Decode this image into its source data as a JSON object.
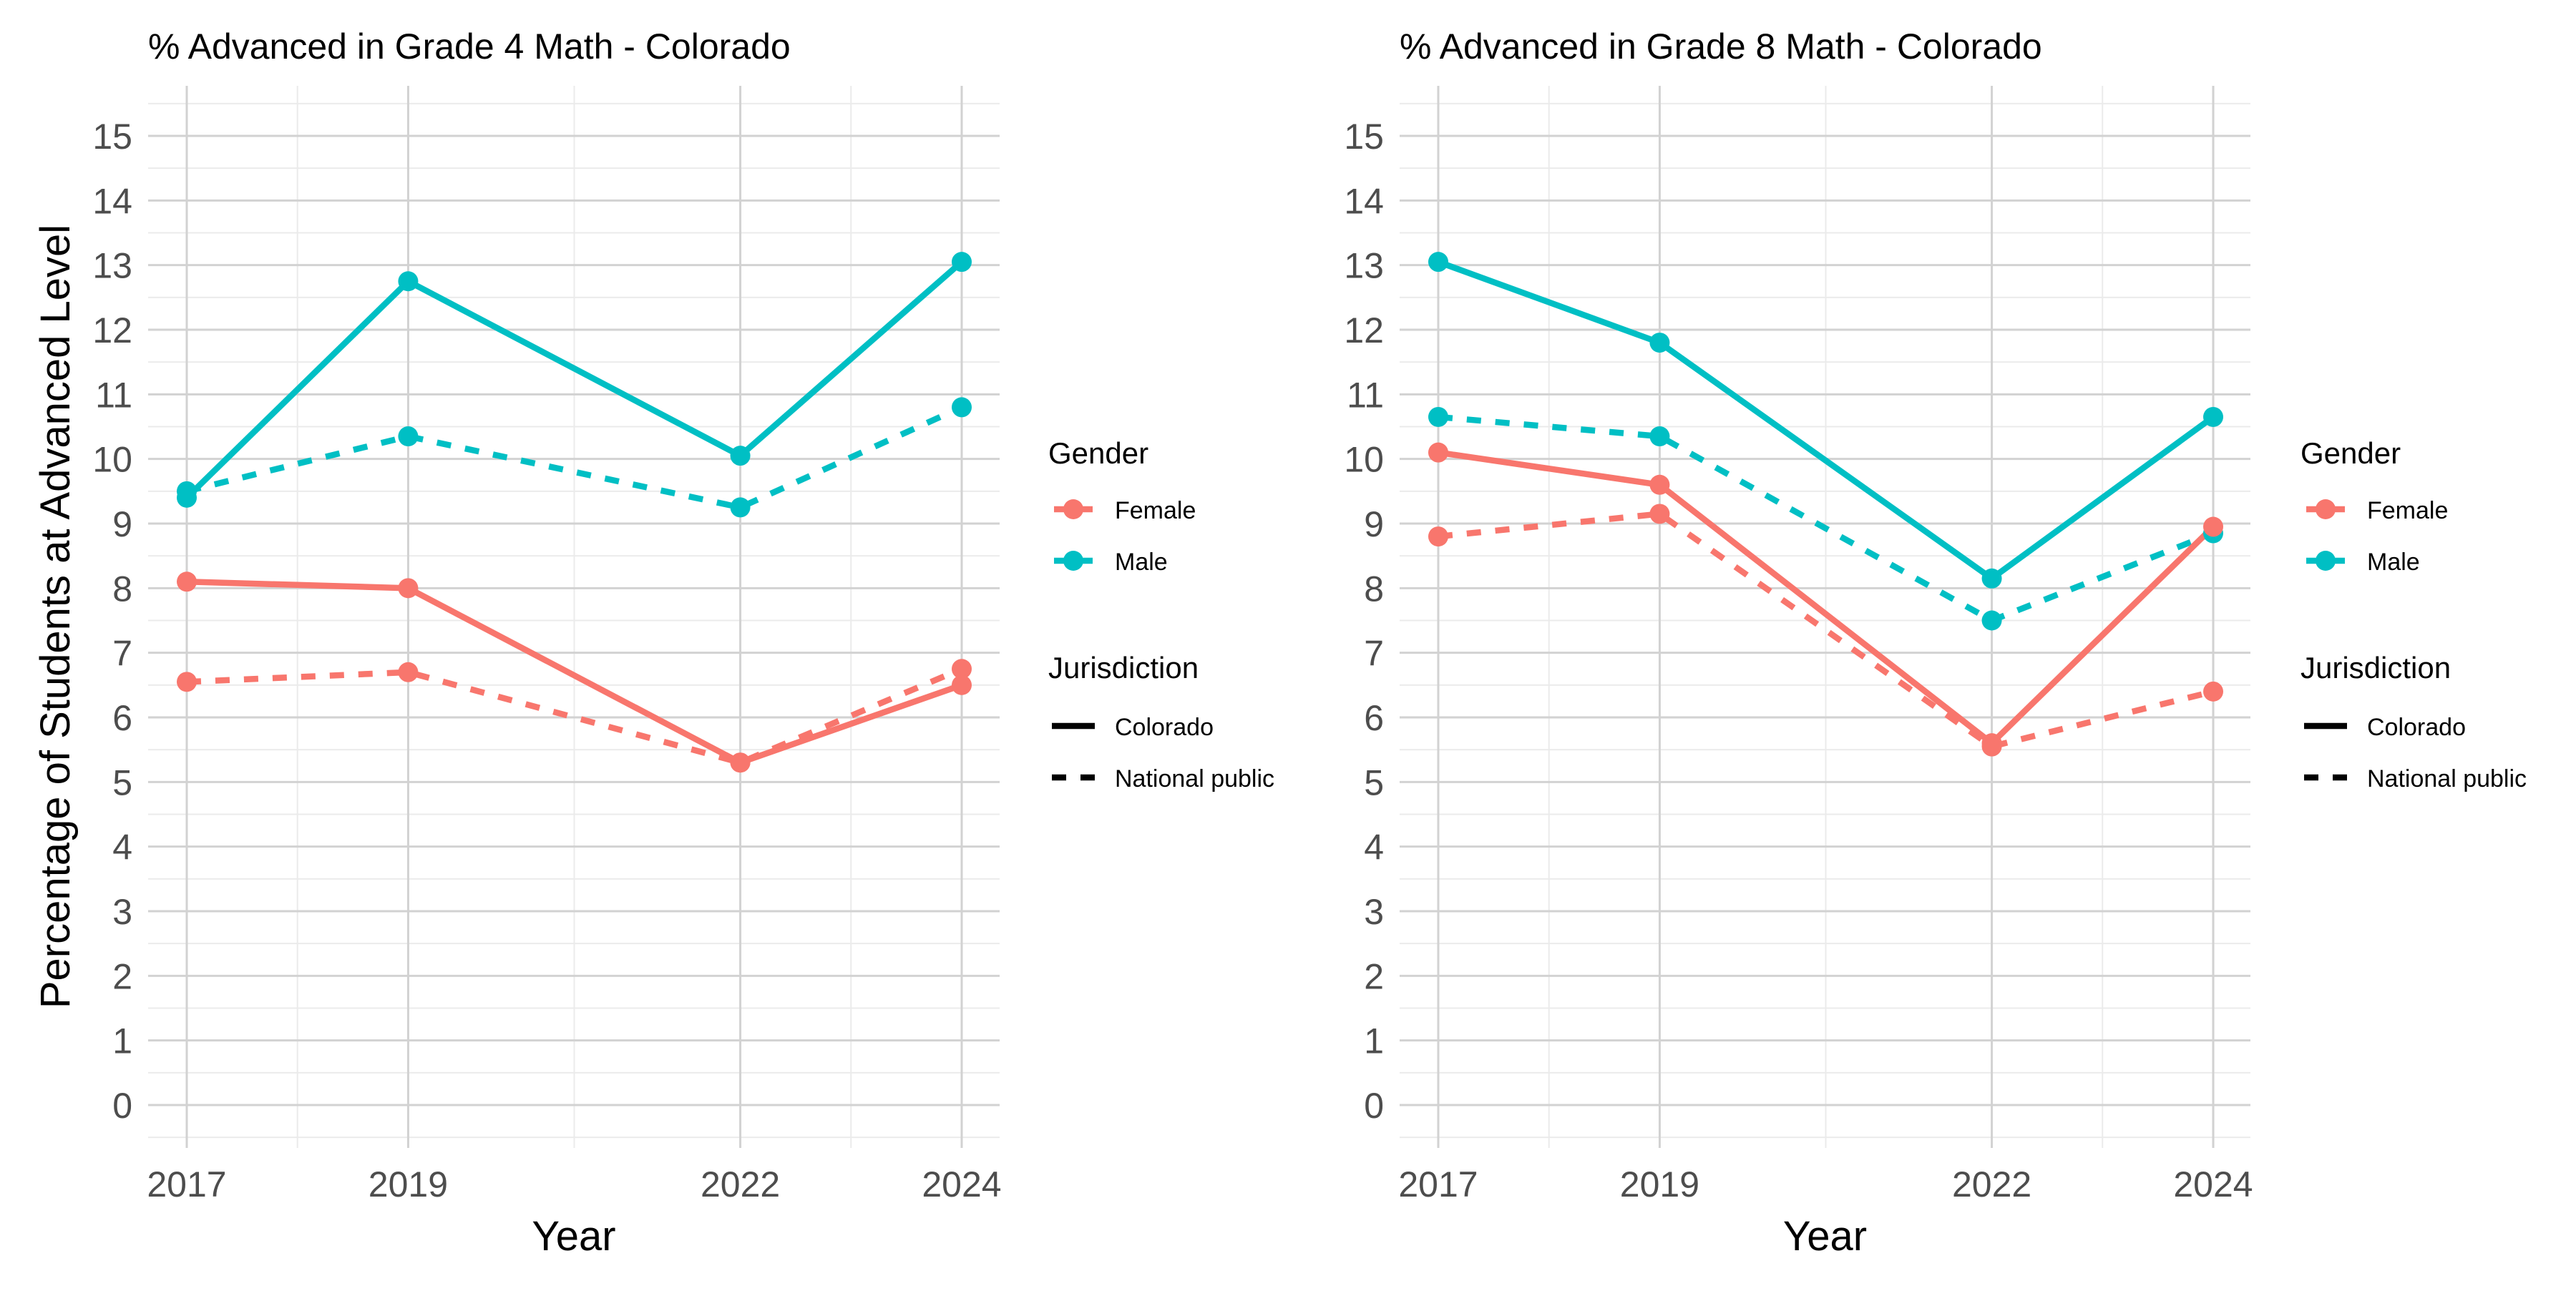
{
  "shared": {
    "ylabel": "Percentage of Students at Advanced Level",
    "xlabel": "Year",
    "colors": {
      "Female": "#F8766D",
      "Male": "#00BFC4"
    },
    "legend": {
      "gender_title": "Gender",
      "gender_items": [
        "Female",
        "Male"
      ],
      "jurisdiction_title": "Jurisdiction",
      "jurisdiction_items": [
        "Colorado",
        "National public"
      ]
    }
  },
  "chart_data": [
    {
      "type": "line",
      "title": "% Advanced in Grade 4 Math - Colorado",
      "xlabel": "Year",
      "ylabel": "Percentage of Students at Advanced Level",
      "x": [
        2017,
        2019,
        2022,
        2024
      ],
      "xlim": [
        2017,
        2024
      ],
      "ylim": [
        0,
        15
      ],
      "yticks": [
        "0",
        "1",
        "2",
        "3",
        "4",
        "5",
        "6",
        "7",
        "8",
        "9",
        "10",
        "11",
        "12",
        "13",
        "14",
        "15"
      ],
      "xticks": [
        "2017",
        "2019",
        "2022",
        "2024"
      ],
      "grid": true,
      "legend_position": "right",
      "series": [
        {
          "name": "Female",
          "gender": "Female",
          "jurisdiction": "Colorado",
          "values": [
            8.1,
            8.0,
            5.3,
            6.5
          ]
        },
        {
          "name": "Female",
          "gender": "Female",
          "jurisdiction": "National public",
          "values": [
            6.55,
            6.7,
            5.3,
            6.75
          ]
        },
        {
          "name": "Male",
          "gender": "Male",
          "jurisdiction": "Colorado",
          "values": [
            9.4,
            12.75,
            10.05,
            13.05
          ]
        },
        {
          "name": "Male",
          "gender": "Male",
          "jurisdiction": "National public",
          "values": [
            9.5,
            10.35,
            9.25,
            10.8
          ]
        }
      ]
    },
    {
      "type": "line",
      "title": "% Advanced in Grade 8 Math - Colorado",
      "xlabel": "Year",
      "ylabel": "",
      "x": [
        2017,
        2019,
        2022,
        2024
      ],
      "xlim": [
        2017,
        2024
      ],
      "ylim": [
        0,
        15
      ],
      "yticks": [
        "0",
        "1",
        "2",
        "3",
        "4",
        "5",
        "6",
        "7",
        "8",
        "9",
        "10",
        "11",
        "12",
        "13",
        "14",
        "15"
      ],
      "xticks": [
        "2017",
        "2019",
        "2022",
        "2024"
      ],
      "grid": true,
      "legend_position": "right",
      "series": [
        {
          "name": "Female",
          "gender": "Female",
          "jurisdiction": "Colorado",
          "values": [
            10.1,
            9.6,
            5.6,
            8.95
          ]
        },
        {
          "name": "Female",
          "gender": "Female",
          "jurisdiction": "National public",
          "values": [
            8.8,
            9.15,
            5.55,
            6.4
          ]
        },
        {
          "name": "Male",
          "gender": "Male",
          "jurisdiction": "Colorado",
          "values": [
            13.05,
            11.8,
            8.15,
            10.65
          ]
        },
        {
          "name": "Male",
          "gender": "Male",
          "jurisdiction": "National public",
          "values": [
            10.65,
            10.35,
            7.5,
            8.85
          ]
        }
      ]
    }
  ]
}
